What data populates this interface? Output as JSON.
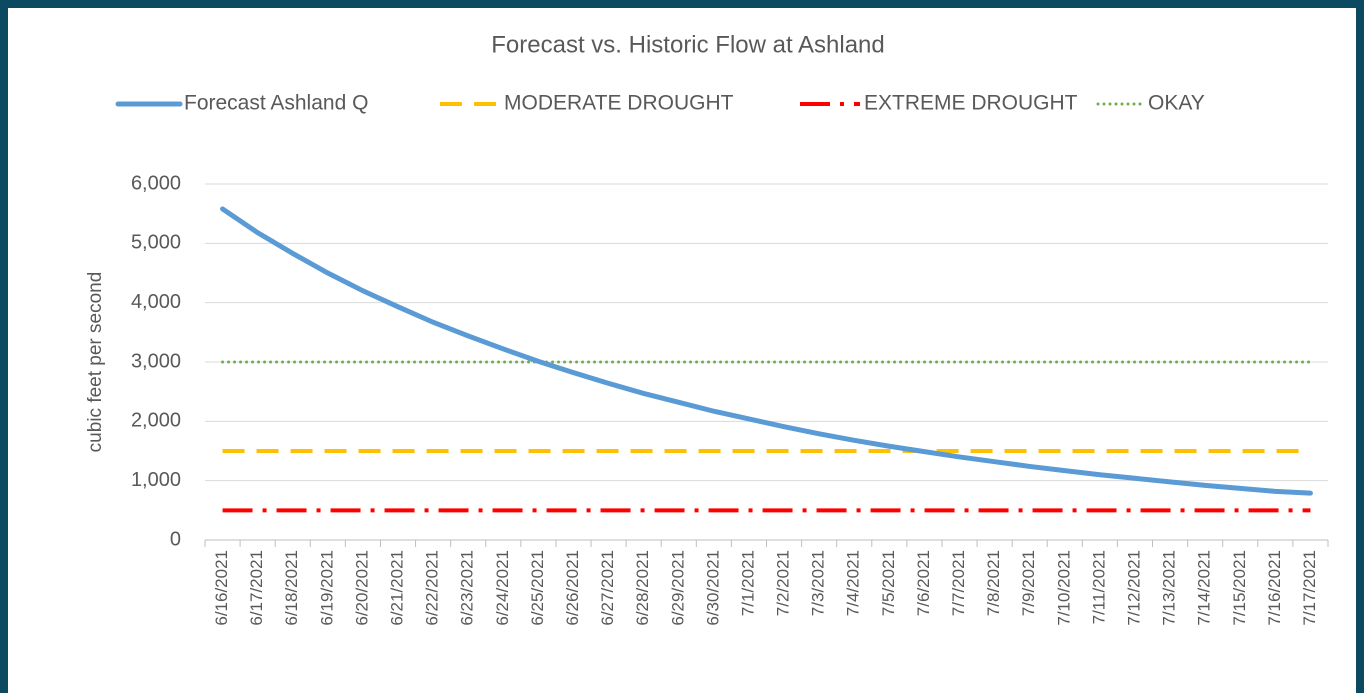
{
  "chart_data": {
    "type": "line",
    "title": "Forecast vs. Historic Flow at Ashland",
    "y_label": "cubic feet per second",
    "categories": [
      "6/16/2021",
      "6/17/2021",
      "6/18/2021",
      "6/19/2021",
      "6/20/2021",
      "6/21/2021",
      "6/22/2021",
      "6/23/2021",
      "6/24/2021",
      "6/25/2021",
      "6/26/2021",
      "6/27/2021",
      "6/28/2021",
      "6/29/2021",
      "6/30/2021",
      "7/1/2021",
      "7/2/2021",
      "7/3/2021",
      "7/4/2021",
      "7/5/2021",
      "7/6/2021",
      "7/7/2021",
      "7/8/2021",
      "7/9/2021",
      "7/10/2021",
      "7/11/2021",
      "7/12/2021",
      "7/13/2021",
      "7/14/2021",
      "7/15/2021",
      "7/16/2021",
      "7/17/2021"
    ],
    "series": [
      {
        "name": "Forecast Ashland Q",
        "color": "#5b9bd5",
        "dash": "solid",
        "values": [
          5580,
          5180,
          4830,
          4500,
          4200,
          3930,
          3670,
          3440,
          3220,
          3010,
          2820,
          2640,
          2470,
          2320,
          2170,
          2040,
          1910,
          1790,
          1680,
          1580,
          1490,
          1400,
          1320,
          1240,
          1170,
          1100,
          1040,
          980,
          920,
          870,
          820,
          790
        ]
      },
      {
        "name": "MODERATE DROUGHT",
        "color": "#ffc000",
        "dash": "dashed",
        "values": [
          1500,
          1500,
          1500,
          1500,
          1500,
          1500,
          1500,
          1500,
          1500,
          1500,
          1500,
          1500,
          1500,
          1500,
          1500,
          1500,
          1500,
          1500,
          1500,
          1500,
          1500,
          1500,
          1500,
          1500,
          1500,
          1500,
          1500,
          1500,
          1500,
          1500,
          1500,
          1500
        ]
      },
      {
        "name": "EXTREME DROUGHT",
        "color": "#ff0000",
        "dash": "dash-dot",
        "values": [
          500,
          500,
          500,
          500,
          500,
          500,
          500,
          500,
          500,
          500,
          500,
          500,
          500,
          500,
          500,
          500,
          500,
          500,
          500,
          500,
          500,
          500,
          500,
          500,
          500,
          500,
          500,
          500,
          500,
          500,
          500,
          500
        ]
      },
      {
        "name": "OKAY",
        "color": "#70ad47",
        "dash": "dotted",
        "values": [
          3000,
          3000,
          3000,
          3000,
          3000,
          3000,
          3000,
          3000,
          3000,
          3000,
          3000,
          3000,
          3000,
          3000,
          3000,
          3000,
          3000,
          3000,
          3000,
          3000,
          3000,
          3000,
          3000,
          3000,
          3000,
          3000,
          3000,
          3000,
          3000,
          3000,
          3000,
          3000
        ]
      }
    ],
    "ylim": [
      0,
      6000
    ],
    "yticks": [
      0,
      {
        "value": 1000,
        "label": "1,000"
      },
      {
        "value": 2000,
        "label": "2,000"
      },
      {
        "value": 3000,
        "label": "3,000"
      },
      {
        "value": 4000,
        "label": "4,000"
      },
      {
        "value": 5000,
        "label": "5,000"
      },
      {
        "value": 6000,
        "label": "6,000"
      }
    ],
    "grid": true,
    "legend": "top"
  }
}
